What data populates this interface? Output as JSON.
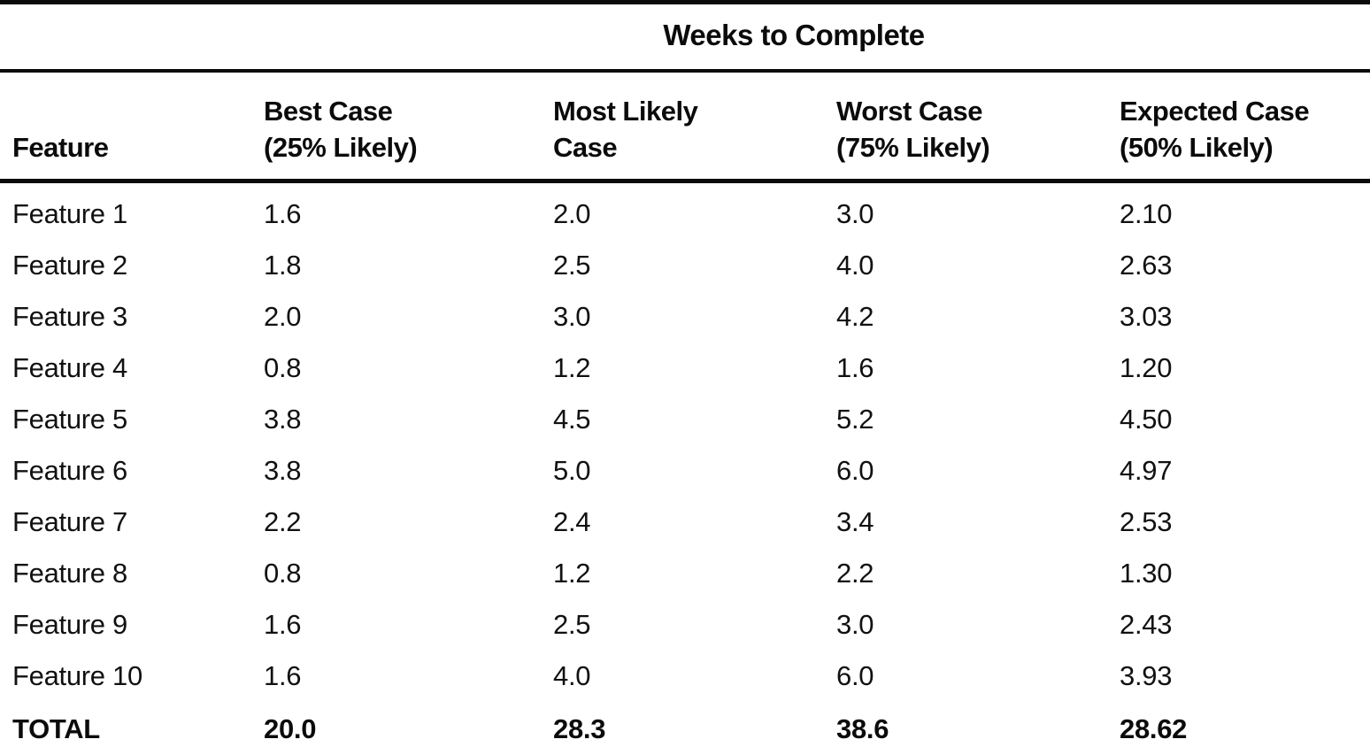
{
  "page": {
    "background_color": "#ffffff",
    "ink_color": "#0d0d0d"
  },
  "table": {
    "title": "Weeks to Complete",
    "columns": [
      "Feature",
      "Best Case\n(25% Likely)",
      "Most Likely\nCase",
      "Worst Case\n(75% Likely)",
      "Expected Case\n(50% Likely)"
    ],
    "rows": [
      [
        "Feature 1",
        "1.6",
        "2.0",
        "3.0",
        "2.10"
      ],
      [
        "Feature 2",
        "1.8",
        "2.5",
        "4.0",
        "2.63"
      ],
      [
        "Feature 3",
        "2.0",
        "3.0",
        "4.2",
        "3.03"
      ],
      [
        "Feature 4",
        "0.8",
        "1.2",
        "1.6",
        "1.20"
      ],
      [
        "Feature 5",
        "3.8",
        "4.5",
        "5.2",
        "4.50"
      ],
      [
        "Feature 6",
        "3.8",
        "5.0",
        "6.0",
        "4.97"
      ],
      [
        "Feature 7",
        "2.2",
        "2.4",
        "3.4",
        "2.53"
      ],
      [
        "Feature 8",
        "0.8",
        "1.2",
        "2.2",
        "1.30"
      ],
      [
        "Feature 9",
        "1.6",
        "2.5",
        "3.0",
        "2.43"
      ],
      [
        "Feature 10",
        "1.6",
        "4.0",
        "6.0",
        "3.93"
      ]
    ],
    "total": [
      "TOTAL",
      "20.0",
      "28.3",
      "38.6",
      "28.62"
    ]
  }
}
